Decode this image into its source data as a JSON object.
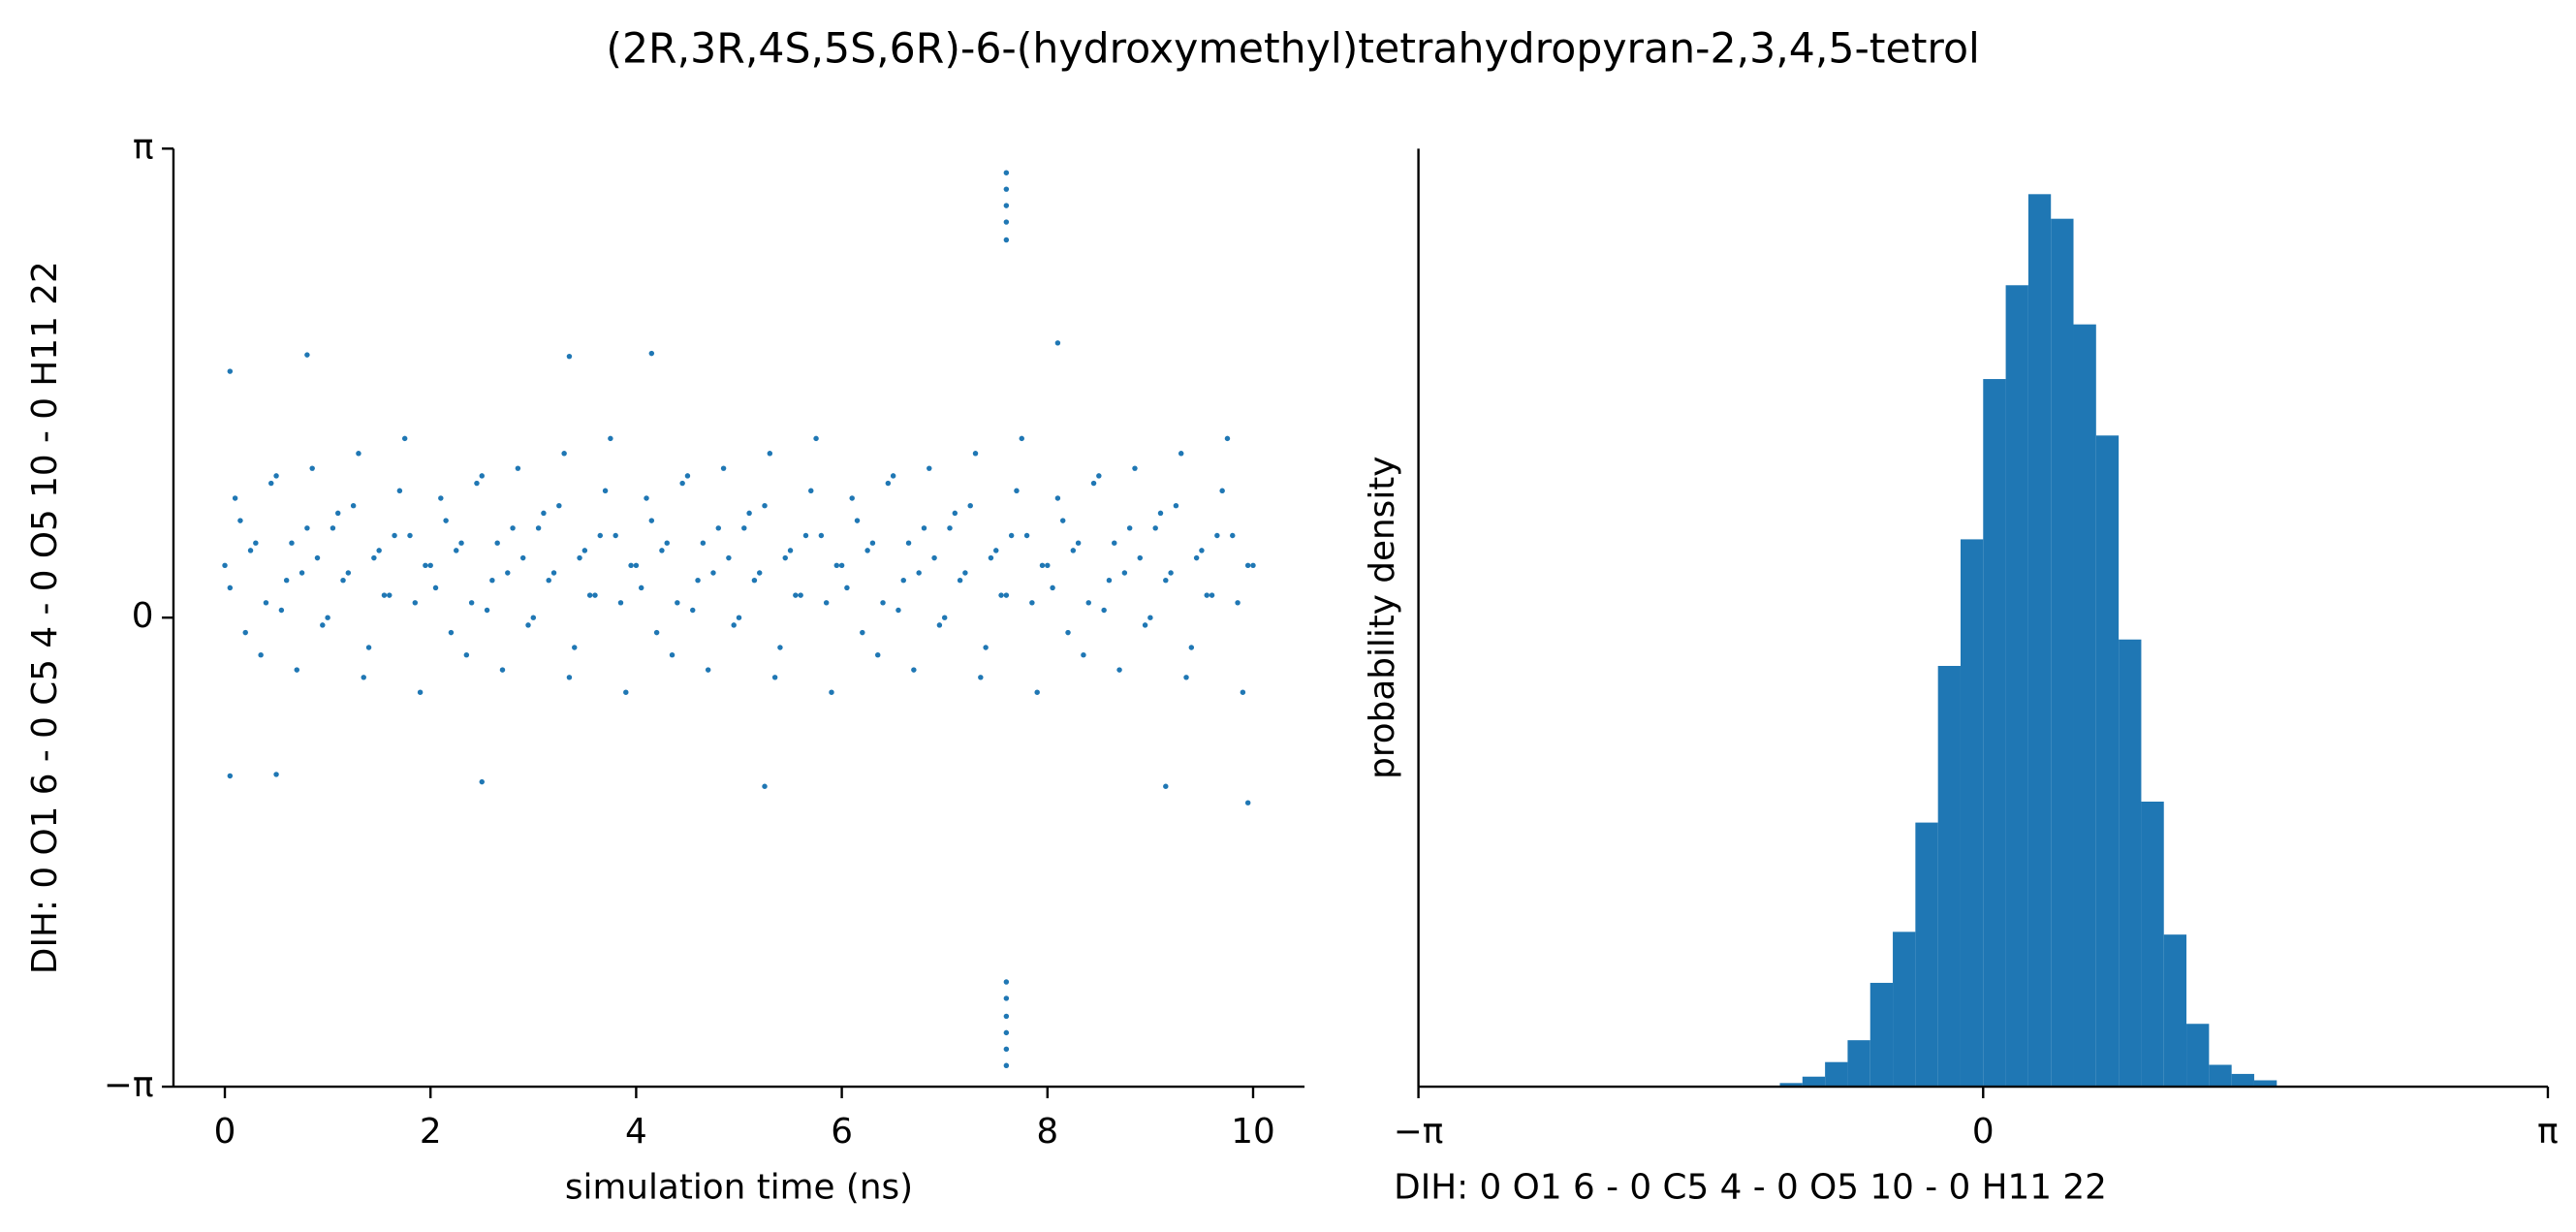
{
  "title": "(2R,3R,4S,5S,6R)-6-(hydroxymethyl)tetrahydropyran-2,3,4,5-tetrol",
  "chart_data": [
    {
      "type": "scatter",
      "color": "#1f77b4",
      "xlabel": "simulation time (ns)",
      "ylabel": "DIH:  0 O1 6 -  0 C5 4 -  0 O5 10 -  0 H11 22",
      "xlim": [
        -0.5,
        10.5
      ],
      "xticks": [
        0,
        2,
        4,
        6,
        8,
        10
      ],
      "ylim": [
        -3.141592653589793,
        3.141592653589793
      ],
      "yticks": [
        {
          "value": -3.141592653589793,
          "label": "−π"
        },
        0,
        {
          "value": 3.141592653589793,
          "label": "π"
        }
      ],
      "x": [
        7.6,
        7.6,
        7.6,
        7.6,
        7.6,
        7.6,
        7.6,
        7.6,
        7.6,
        7.6,
        7.6,
        0.05,
        0.8,
        8.1,
        4.15,
        3.35,
        0.05,
        0.5,
        5.25,
        9.15,
        9.95,
        2.5,
        0,
        0.1,
        0.2,
        0.3,
        0.4,
        0.5,
        0.6,
        0.7,
        0.8,
        0.9,
        1,
        1.1,
        1.2,
        1.3,
        1.4,
        1.5,
        1.6,
        1.7,
        1.8,
        1.9,
        2,
        2.1,
        2.2,
        2.3,
        2.4,
        2.5,
        2.6,
        2.7,
        2.8,
        2.9,
        3,
        3.1,
        3.2,
        3.3,
        3.4,
        3.5,
        3.6,
        3.7,
        3.8,
        3.9,
        4,
        4.1,
        4.2,
        4.3,
        4.4,
        4.5,
        4.6,
        4.7,
        4.8,
        4.9,
        5,
        5.1,
        5.2,
        5.3,
        5.4,
        5.5,
        5.6,
        5.7,
        5.8,
        5.9,
        6,
        6.1,
        6.2,
        6.3,
        6.4,
        6.5,
        6.6,
        6.7,
        6.8,
        6.9,
        7,
        7.1,
        7.2,
        7.3,
        7.4,
        7.5,
        7.6,
        7.7,
        7.8,
        7.9,
        8,
        8.1,
        8.2,
        8.3,
        8.4,
        8.5,
        8.6,
        8.7,
        8.8,
        8.9,
        9,
        9.1,
        9.2,
        9.3,
        9.4,
        9.5,
        9.6,
        9.7,
        9.8,
        9.9,
        10,
        0.05,
        0.15,
        0.25,
        0.35,
        0.45,
        0.55,
        0.65,
        0.75,
        0.85,
        0.95,
        1.05,
        1.15,
        1.25,
        1.35,
        1.45,
        1.55,
        1.65,
        1.75,
        1.85,
        1.95,
        2.05,
        2.15,
        2.25,
        2.35,
        2.45,
        2.55,
        2.65,
        2.75,
        2.85,
        2.95,
        3.05,
        3.15,
        3.25,
        3.35,
        3.45,
        3.55,
        3.65,
        3.75,
        3.85,
        3.95,
        4.05,
        4.15,
        4.25,
        4.35,
        4.45,
        4.55,
        4.65,
        4.75,
        4.85,
        4.95,
        5.05,
        5.15,
        5.25,
        5.35,
        5.45,
        5.55,
        5.65,
        5.75,
        5.85,
        5.95,
        6.05,
        6.15,
        6.25,
        6.35,
        6.45,
        6.55,
        6.65,
        6.75,
        6.85,
        6.95,
        7.05,
        7.15,
        7.25,
        7.35,
        7.45,
        7.55,
        7.65,
        7.75,
        7.85,
        7.95,
        8.05,
        8.15,
        8.25,
        8.35,
        8.45,
        8.55,
        8.65,
        8.75,
        8.85,
        8.95,
        9.05,
        9.15,
        9.25,
        9.35,
        9.45,
        9.55,
        9.65,
        9.75,
        9.85,
        9.95
      ],
      "y": [
        2.98,
        2.87,
        2.76,
        2.65,
        2.53,
        -2.44,
        -2.55,
        -2.67,
        -2.78,
        -2.89,
        -3.0,
        1.65,
        1.76,
        1.84,
        1.77,
        1.75,
        -1.06,
        -1.05,
        -1.13,
        -1.13,
        -1.24,
        -1.1,
        0.35,
        0.8,
        -0.1,
        0.5,
        0.1,
        0.95,
        0.25,
        -0.35,
        0.6,
        0.4,
        0.0,
        0.7,
        0.3,
        1.1,
        -0.2,
        0.45,
        0.15,
        0.85,
        0.55,
        -0.5,
        0.35,
        0.8,
        -0.1,
        0.5,
        0.1,
        0.95,
        0.25,
        -0.35,
        0.6,
        0.4,
        0.0,
        0.7,
        0.3,
        1.1,
        -0.2,
        0.45,
        0.15,
        0.85,
        0.55,
        -0.5,
        0.35,
        0.8,
        -0.1,
        0.5,
        0.1,
        0.95,
        0.25,
        -0.35,
        0.6,
        0.4,
        0.0,
        0.7,
        0.3,
        1.1,
        -0.2,
        0.45,
        0.15,
        0.85,
        0.55,
        -0.5,
        0.35,
        0.8,
        -0.1,
        0.5,
        0.1,
        0.95,
        0.25,
        -0.35,
        0.6,
        0.4,
        0.0,
        0.7,
        0.3,
        1.1,
        -0.2,
        0.45,
        0.15,
        0.85,
        0.55,
        -0.5,
        0.35,
        0.8,
        -0.1,
        0.5,
        0.1,
        0.95,
        0.25,
        -0.35,
        0.6,
        0.4,
        0.0,
        0.7,
        0.3,
        1.1,
        -0.2,
        0.45,
        0.15,
        0.85,
        0.55,
        -0.5,
        0.35,
        0.2,
        0.65,
        0.45,
        -0.25,
        0.9,
        0.05,
        0.5,
        0.3,
        1.0,
        -0.05,
        0.6,
        0.25,
        0.75,
        -0.4,
        0.4,
        0.15,
        0.55,
        1.2,
        0.1,
        0.35,
        0.2,
        0.65,
        0.45,
        -0.25,
        0.9,
        0.05,
        0.5,
        0.3,
        1.0,
        -0.05,
        0.6,
        0.25,
        0.75,
        -0.4,
        0.4,
        0.15,
        0.55,
        1.2,
        0.1,
        0.35,
        0.2,
        0.65,
        0.45,
        -0.25,
        0.9,
        0.05,
        0.5,
        0.3,
        1.0,
        -0.05,
        0.6,
        0.25,
        0.75,
        -0.4,
        0.4,
        0.15,
        0.55,
        1.2,
        0.1,
        0.35,
        0.2,
        0.65,
        0.45,
        -0.25,
        0.9,
        0.05,
        0.5,
        0.3,
        1.0,
        -0.05,
        0.6,
        0.25,
        0.75,
        -0.4,
        0.4,
        0.15,
        0.55,
        1.2,
        0.1,
        0.35,
        0.2,
        0.65,
        0.45,
        -0.25,
        0.9,
        0.05,
        0.5,
        0.3,
        1.0,
        -0.05,
        0.6,
        0.25,
        0.75,
        -0.4,
        0.4,
        0.15,
        0.55,
        1.2,
        0.1,
        0.35
      ]
    },
    {
      "type": "histogram",
      "color": "#1f77b4",
      "xlabel": "DIH:  0 O1 6 -  0 C5 4 -  0 O5 10 -  0 H11 22",
      "ylabel": "probability density",
      "xlim": [
        -3.141592653589793,
        3.141592653589793
      ],
      "xticks": [
        {
          "value": -3.141592653589793,
          "label": "−π"
        },
        0,
        {
          "value": 3.141592653589793,
          "label": "π"
        }
      ],
      "ylim": [
        0,
        1.03
      ],
      "bins": [
        -1.130973,
        -1.00531,
        -0.879646,
        -0.753982,
        -0.628319,
        -0.502655,
        -0.376991,
        -0.251327,
        -0.125664,
        0,
        0.125664,
        0.251327,
        0.376991,
        0.502655,
        0.628319,
        0.753982,
        0.879646,
        1.00531,
        1.130973,
        1.256637,
        1.382301,
        1.507964,
        1.633628
      ],
      "values": [
        0.004,
        0.011,
        0.027,
        0.051,
        0.114,
        0.17,
        0.29,
        0.462,
        0.601,
        0.777,
        0.88,
        0.98,
        0.953,
        0.837,
        0.715,
        0.491,
        0.313,
        0.167,
        0.069,
        0.024,
        0.014,
        0.007
      ]
    }
  ]
}
